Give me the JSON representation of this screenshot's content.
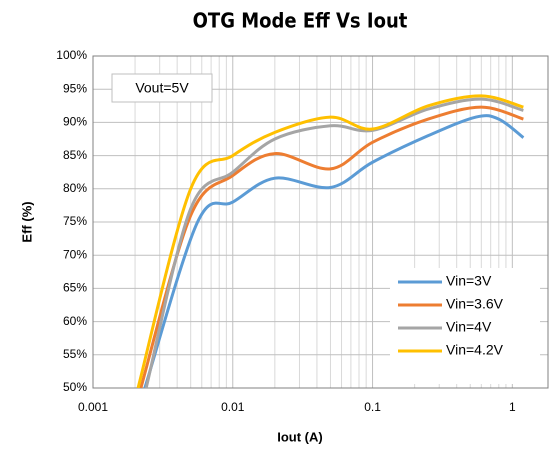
{
  "chart_data": {
    "type": "line",
    "title": "OTG Mode Eff Vs Iout",
    "xlabel": "Iout (A)",
    "ylabel": "Eff (%)",
    "annotation": "Vout=5V",
    "xscale": "log",
    "xlim": [
      0.001,
      1.8
    ],
    "xticks": [
      0.001,
      0.01,
      0.1,
      1
    ],
    "ylim": [
      50,
      100
    ],
    "yticks": [
      {
        "value": 50,
        "label": "50%"
      },
      {
        "value": 55,
        "label": "55%"
      },
      {
        "value": 60,
        "label": "60%"
      },
      {
        "value": 65,
        "label": "65%"
      },
      {
        "value": 70,
        "label": "70%"
      },
      {
        "value": 75,
        "label": "75%"
      },
      {
        "value": 80,
        "label": "80%"
      },
      {
        "value": 85,
        "label": "85%"
      },
      {
        "value": 90,
        "label": "90%"
      },
      {
        "value": 95,
        "label": "95%"
      },
      {
        "value": 100,
        "label": "100%"
      }
    ],
    "grid": true,
    "legend": "lower right",
    "series": [
      {
        "name": "Vin=3V",
        "color": "#5b9bd5",
        "x": [
          0.00235,
          0.0056,
          0.01,
          0.02,
          0.05,
          0.1,
          0.25,
          0.55,
          0.8,
          1.2
        ],
        "values": [
          50,
          75,
          78,
          81.6,
          80.2,
          84,
          88,
          90.8,
          90.5,
          87.7
        ]
      },
      {
        "name": "Vin=3.6V",
        "color": "#ed7d31",
        "x": [
          0.0022,
          0.005,
          0.01,
          0.02,
          0.05,
          0.1,
          0.25,
          0.6,
          1.2
        ],
        "values": [
          50,
          76,
          82,
          85.3,
          83,
          87,
          90.5,
          92.3,
          90.5
        ]
      },
      {
        "name": "Vin=4V",
        "color": "#a5a5a5",
        "x": [
          0.0024,
          0.005,
          0.01,
          0.02,
          0.05,
          0.1,
          0.25,
          0.6,
          1.2
        ],
        "values": [
          50,
          77,
          82.5,
          87.5,
          89.5,
          88.8,
          92,
          93.5,
          91.8
        ]
      },
      {
        "name": "Vin=4.2V",
        "color": "#ffc000",
        "x": [
          0.0021,
          0.005,
          0.01,
          0.02,
          0.05,
          0.1,
          0.25,
          0.6,
          1.2
        ],
        "values": [
          50,
          80,
          85,
          88.5,
          90.8,
          89,
          92.5,
          94,
          92.3
        ]
      }
    ]
  }
}
